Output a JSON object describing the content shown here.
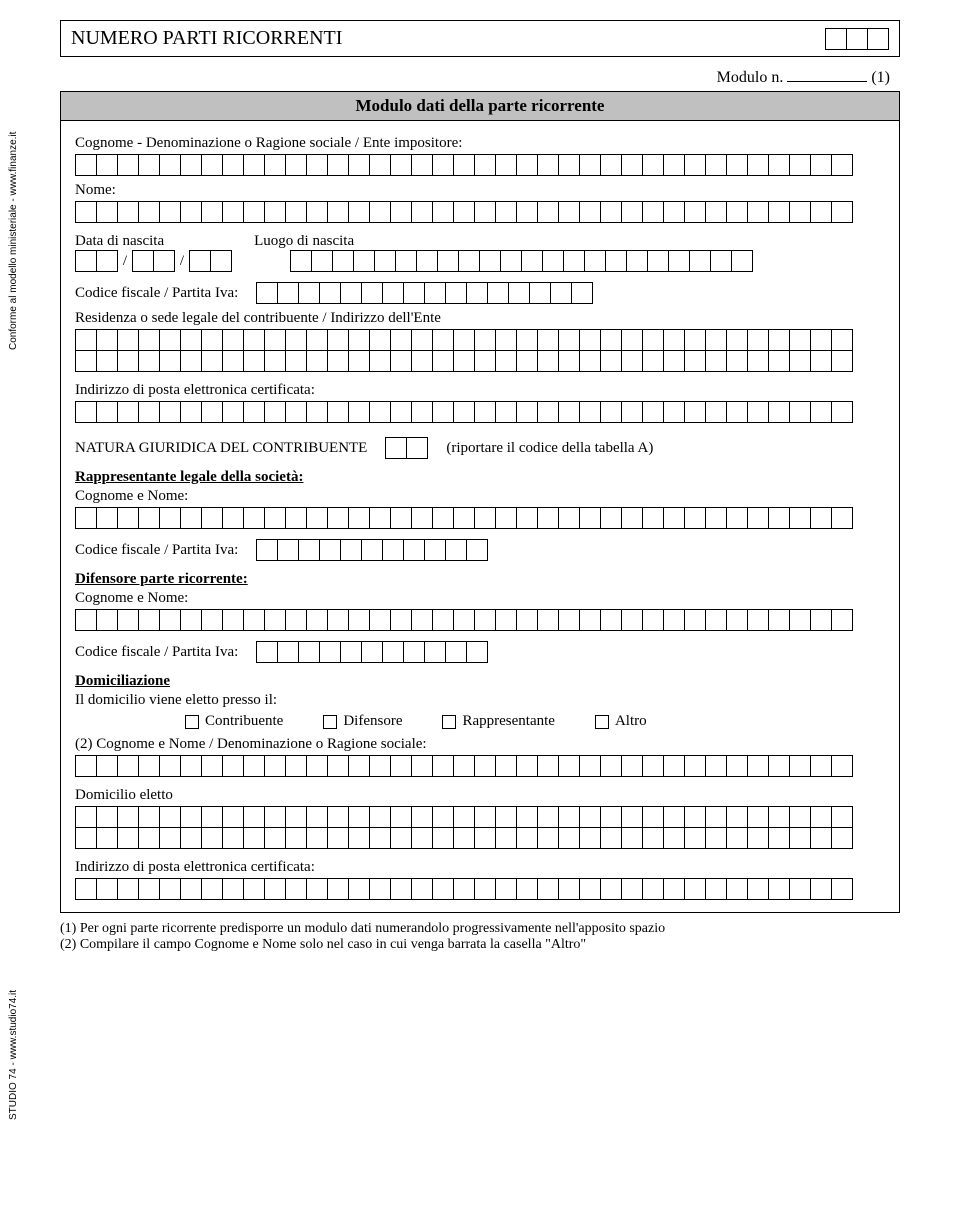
{
  "top": {
    "title": "NUMERO PARTI RICORRENTI",
    "cells": 3
  },
  "modulo_n": {
    "label": "Modulo n.",
    "suffix": "(1)"
  },
  "header": "Modulo dati della parte ricorrente",
  "side1": "Conforme al modello ministeriale - www.finanze.it",
  "side2": "STUDIO 74 - www.studio74.it",
  "fields": {
    "cognome_label": "Cognome - Denominazione o Ragione sociale / Ente impositore:",
    "nome_label": "Nome:",
    "data_nascita_label": "Data di nascita",
    "luogo_nascita_label": "Luogo di nascita",
    "cf_label": "Codice fiscale / Partita Iva:",
    "residenza_label": "Residenza o sede legale del contribuente / Indirizzo dell'Ente",
    "pec_label": "Indirizzo di posta elettronica certificata:",
    "natura_label": "NATURA GIURIDICA DEL CONTRIBUENTE",
    "natura_note": "(riportare il codice della tabella A)",
    "rappr_title": "Rappresentante legale della società:",
    "cognome_nome_label": "Cognome e Nome:",
    "difensore_title": "Difensore parte ricorrente:",
    "domicil_title": "Domiciliazione",
    "domicil_sub": "Il domicilio viene eletto presso il:",
    "opt1": "Contribuente",
    "opt2": "Difensore",
    "opt3": "Rappresentante",
    "opt4": "Altro",
    "cognome_denom_2": "(2) Cognome e Nome / Denominazione o Ragione sociale:",
    "domicilio_eletto": "Domicilio eletto"
  },
  "footnotes": {
    "f1": "(1) Per ogni parte ricorrente predisporre un modulo dati numerandolo progressivamente nell'apposito spazio",
    "f2": "(2) Compilare il campo Cognome e Nome solo nel caso in cui venga barrata la casella \"Altro\""
  },
  "cell_counts": {
    "long_row": 37,
    "dd": 2,
    "mm": 2,
    "yy": 2,
    "luogo": 22,
    "cf": 16,
    "natura": 2,
    "cf_short": 11
  }
}
